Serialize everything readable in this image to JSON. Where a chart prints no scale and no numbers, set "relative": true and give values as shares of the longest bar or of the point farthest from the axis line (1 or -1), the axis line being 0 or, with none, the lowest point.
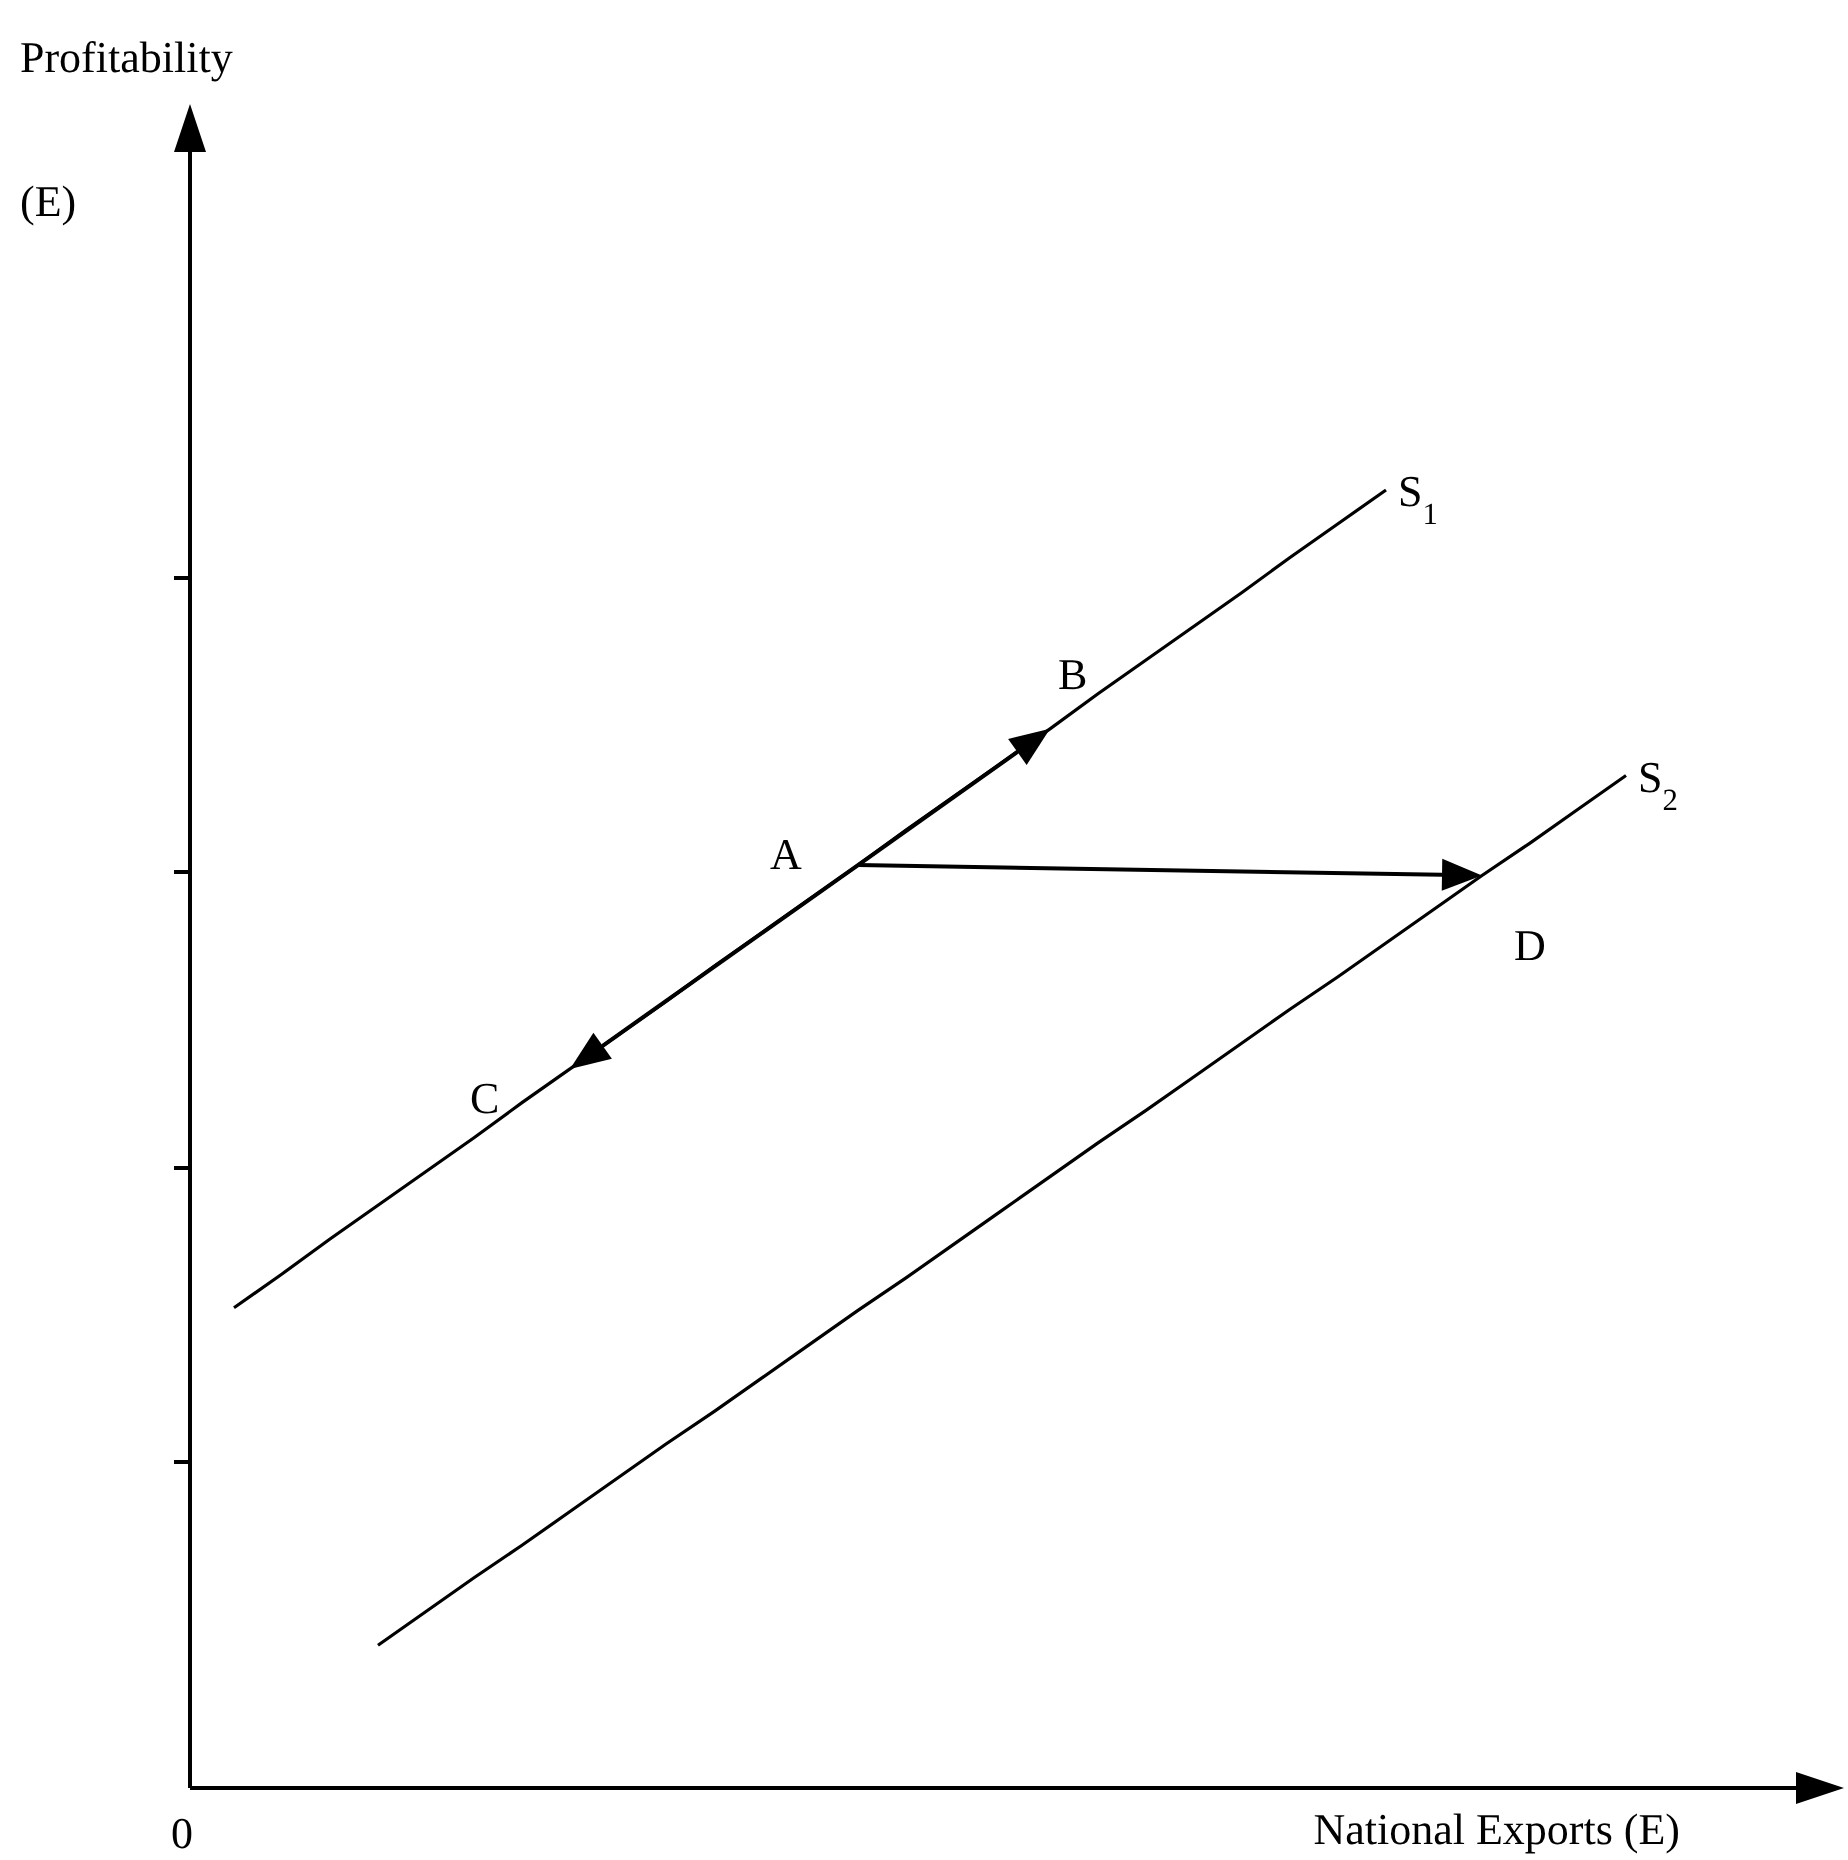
{
  "chart_data": {
    "type": "line",
    "relative": true,
    "xlabel": "National Exports (E)",
    "ylabel": "Profitability\n(E)",
    "line_style": "solid",
    "marker": "none",
    "categories": [
      null,
      null,
      null,
      null,
      null,
      null,
      null,
      null,
      null,
      null,
      null,
      null,
      null,
      null,
      null,
      null,
      null,
      null,
      null,
      null,
      null,
      null,
      null,
      null,
      null,
      null,
      null,
      null,
      null,
      null
    ],
    "series": [
      {
        "name": "S$_{1}$",
        "color": "#000000",
        "values": [
          0.37,
          0.396,
          0.423,
          0.449,
          0.475,
          0.501,
          0.528,
          0.554,
          0.58,
          0.606,
          0.633,
          0.659,
          0.685,
          0.711,
          0.738,
          0.764,
          0.79,
          0.816,
          0.843,
          0.869,
          0.895,
          0.921,
          0.948,
          0.974,
          1,
          null,
          null,
          null,
          null,
          null
        ]
      },
      {
        "name": "S$_{2}$",
        "color": "#000000",
        "values": [
          null,
          null,
          null,
          0.11,
          0.136,
          0.162,
          0.187,
          0.213,
          0.239,
          0.265,
          0.29,
          0.316,
          0.342,
          0.368,
          0.393,
          0.419,
          0.445,
          0.471,
          0.497,
          0.522,
          0.548,
          0.574,
          0.6,
          0.625,
          0.651,
          0.677,
          0.703,
          0.728,
          0.754,
          0.78
        ]
      }
    ],
    "annotations": [
      "A",
      "B",
      "C",
      "D",
      "0"
    ]
  }
}
